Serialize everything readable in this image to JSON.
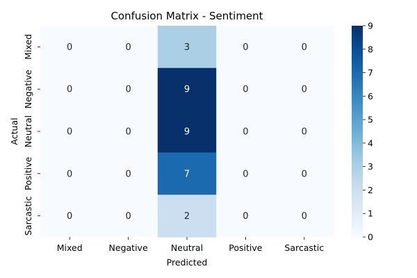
{
  "chart_data": {
    "type": "heatmap",
    "title": "Confusion Matrix - Sentiment",
    "xlabel": "Predicted",
    "ylabel": "Actual",
    "x_categories": [
      "Mixed",
      "Negative",
      "Neutral",
      "Positive",
      "Sarcastic"
    ],
    "y_categories": [
      "Mixed",
      "Negative",
      "Neutral",
      "Positive",
      "Sarcastic"
    ],
    "values": [
      [
        0,
        0,
        3,
        0,
        0
      ],
      [
        0,
        0,
        9,
        0,
        0
      ],
      [
        0,
        0,
        9,
        0,
        0
      ],
      [
        0,
        0,
        7,
        0,
        0
      ],
      [
        0,
        0,
        2,
        0,
        0
      ]
    ],
    "colormap": "Blues",
    "colorbar": {
      "min": 0,
      "max": 9,
      "ticks": [
        "0",
        "1",
        "2",
        "3",
        "4",
        "5",
        "6",
        "7",
        "8",
        "9"
      ]
    },
    "annotations": true
  }
}
